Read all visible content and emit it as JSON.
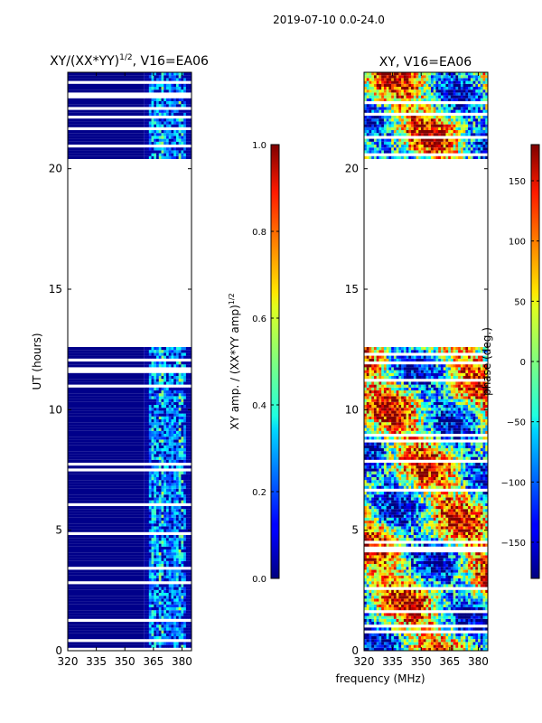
{
  "suptitle": "2019-07-10 0.0-24.0",
  "xlabel_shared": "frequency (MHz)",
  "chart_data": [
    {
      "type": "heatmap",
      "title_base": "XY/(XX*YY)",
      "title_sup": "1/2",
      "title_suffix": ", V16=EA06",
      "ylabel": "UT (hours)",
      "xlim": [
        320,
        385
      ],
      "ylim": [
        0,
        24
      ],
      "xticks": [
        320,
        335,
        350,
        365,
        380
      ],
      "yticks": [
        0,
        5,
        10,
        15,
        20
      ],
      "data_gap_hours": [
        12.6,
        20.4
      ],
      "colorbar": {
        "label_base": "XY amp. / (XX*YY amp)",
        "label_sup": "1/2",
        "range": [
          0.0,
          1.0
        ],
        "ticks": [
          "0.0",
          "0.2",
          "0.4",
          "0.6",
          "0.8",
          "1.0"
        ],
        "colormap": "jet"
      }
    },
    {
      "type": "heatmap",
      "title": "XY, V16=EA06",
      "xlim": [
        320,
        385
      ],
      "ylim": [
        0,
        24
      ],
      "xticks": [
        320,
        335,
        350,
        365,
        380
      ],
      "yticks": [
        0,
        5,
        10,
        15,
        20
      ],
      "data_gap_hours": [
        12.6,
        20.4
      ],
      "colorbar": {
        "label": "phase (deg.)",
        "range": [
          -180,
          180
        ],
        "ticks": [
          "−150",
          "−100",
          "−50",
          "0",
          "50",
          "100",
          "150"
        ],
        "colormap": "jet"
      }
    }
  ],
  "colors": {
    "low": "#00007f",
    "mid": "#7fff7f",
    "high": "#7f0000"
  }
}
